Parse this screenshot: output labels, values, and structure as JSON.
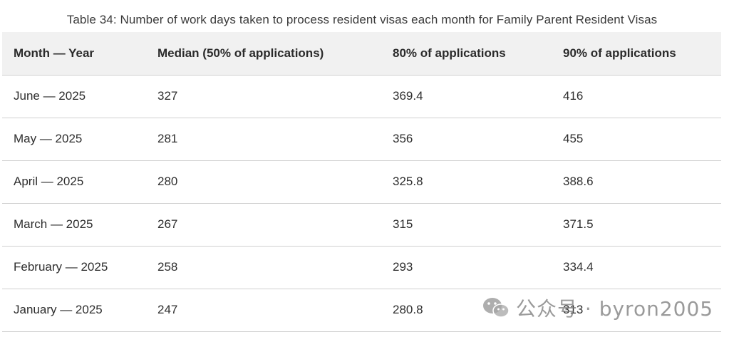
{
  "caption": "Table 34: Number of work days taken to process resident visas each month for Family Parent Resident Visas",
  "table": {
    "headers": [
      "Month — Year",
      "Median (50% of applications)",
      "80% of applications",
      "90% of applications"
    ],
    "rows": [
      [
        "June — 2025",
        "327",
        "369.4",
        "416"
      ],
      [
        "May — 2025",
        "281",
        "356",
        "455"
      ],
      [
        "April — 2025",
        "280",
        "325.8",
        "388.6"
      ],
      [
        "March — 2025",
        "267",
        "315",
        "371.5"
      ],
      [
        "February — 2025",
        "258",
        "293",
        "334.4"
      ],
      [
        "January — 2025",
        "247",
        "280.8",
        "313"
      ]
    ]
  },
  "watermark": {
    "icon": "wechat-icon",
    "text": "公众号 · byron2005"
  }
}
